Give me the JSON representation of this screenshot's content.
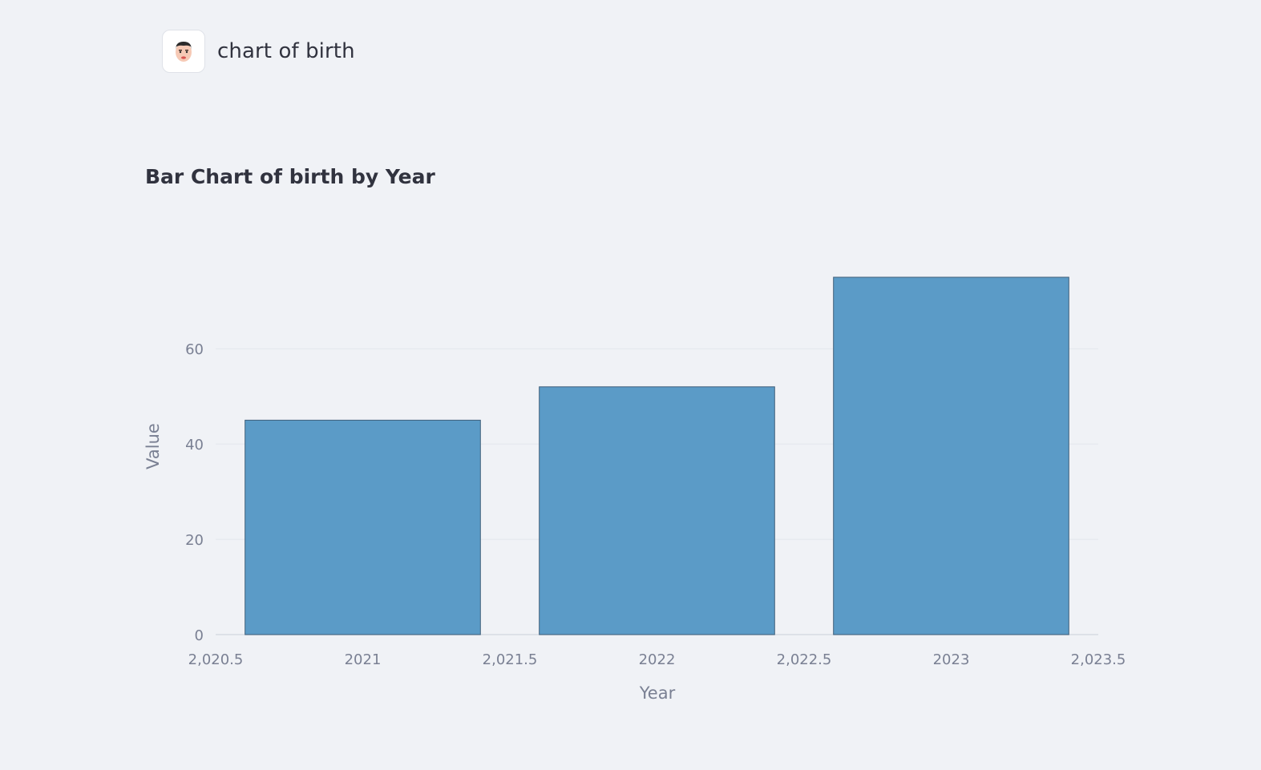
{
  "header": {
    "title": "chart of birth",
    "avatar_icon": "man-face-emoji-icon"
  },
  "chart_data": {
    "type": "bar",
    "title": "Bar Chart of birth by Year",
    "xlabel": "Year",
    "ylabel": "Value",
    "categories": [
      2021,
      2022,
      2023
    ],
    "values": [
      45,
      52,
      75
    ],
    "xlim": [
      2020.5,
      2023.5
    ],
    "ylim": [
      0,
      75
    ],
    "x_ticks": [
      {
        "value": 2020.5,
        "label": "2,020.5"
      },
      {
        "value": 2021,
        "label": "2021"
      },
      {
        "value": 2021.5,
        "label": "2,021.5"
      },
      {
        "value": 2022,
        "label": "2022"
      },
      {
        "value": 2022.5,
        "label": "2,022.5"
      },
      {
        "value": 2023,
        "label": "2023"
      },
      {
        "value": 2023.5,
        "label": "2,023.5"
      }
    ],
    "y_ticks": [
      0,
      20,
      40,
      60
    ],
    "grid": true,
    "bar_color": "#5b9bc7",
    "bar_edge_color": "#3f5f7a",
    "grid_color": "#e3e6ec",
    "axis_text_color": "#7a8093"
  }
}
